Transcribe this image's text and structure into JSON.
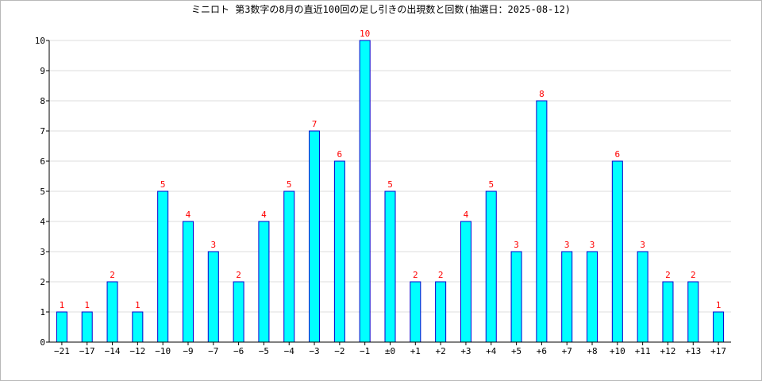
{
  "chart_data": {
    "type": "bar",
    "title": "ミニロト 第3数字の8月の直近100回の足し引きの出現数と回数(抽選日：2025-08-12)",
    "xlabel": "",
    "ylabel": "",
    "ylim": [
      0,
      10
    ],
    "yticks": [
      "0",
      "1",
      "2",
      "3",
      "4",
      "5",
      "6",
      "7",
      "8",
      "9",
      "10"
    ],
    "grid": true,
    "categories": [
      "−21",
      "−17",
      "−14",
      "−12",
      "−10",
      "−9",
      "−7",
      "−6",
      "−5",
      "−4",
      "−3",
      "−2",
      "−1",
      "±0",
      "+1",
      "+2",
      "+3",
      "+4",
      "+5",
      "+6",
      "+7",
      "+8",
      "+10",
      "+11",
      "+12",
      "+13",
      "+17"
    ],
    "values": [
      1,
      1,
      2,
      1,
      5,
      4,
      3,
      2,
      4,
      5,
      7,
      6,
      10,
      5,
      2,
      2,
      4,
      5,
      3,
      8,
      3,
      3,
      6,
      3,
      2,
      2,
      1
    ],
    "data_labels": [
      "1",
      "1",
      "2",
      "1",
      "5",
      "4",
      "3",
      "2",
      "4",
      "5",
      "7",
      "6",
      "10",
      "5",
      "2",
      "2",
      "4",
      "5",
      "3",
      "8",
      "3",
      "3",
      "6",
      "3",
      "2",
      "2",
      "1"
    ],
    "colors": {
      "bar_fill": "#00ffff",
      "bar_stroke": "#0000cc",
      "label": "#ff0000",
      "grid": "#dddddd",
      "axis": "#000000"
    }
  }
}
